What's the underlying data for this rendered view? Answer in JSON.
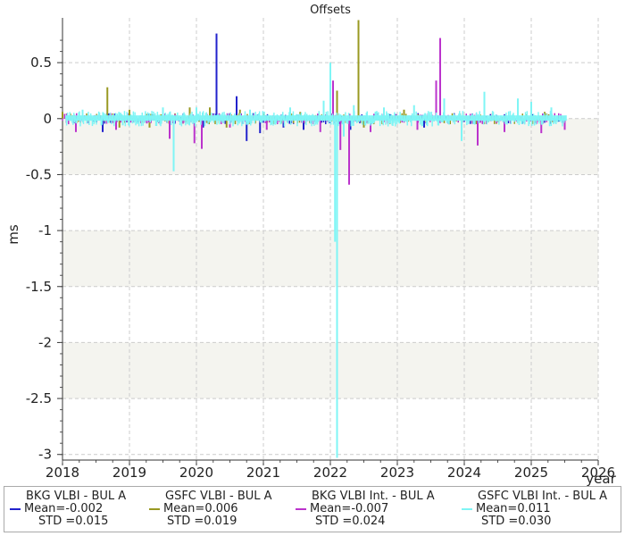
{
  "chart_data": {
    "type": "bar",
    "title": "Offsets",
    "xlabel": "year",
    "ylabel": "ms",
    "xlim": [
      2018,
      2026
    ],
    "ylim": [
      -3.05,
      0.9
    ],
    "x_ticks": [
      "2018",
      "2019",
      "2020",
      "2021",
      "2022",
      "2023",
      "2024",
      "2025",
      "2026"
    ],
    "y_ticks": [
      "0.5",
      "0",
      "-0.5",
      "-1",
      "-1.5",
      "-2",
      "-2.5",
      "-3"
    ],
    "grid": true,
    "legend_position": "bottom",
    "series": [
      {
        "name": "BKG VLBI - BUL A",
        "color": "#2222cc",
        "mean": "Mean=-0.002",
        "std": "STD =0.015",
        "values": [
          [
            2018.6,
            -0.12
          ],
          [
            2019.0,
            0.03
          ],
          [
            2020.1,
            -0.08
          ],
          [
            2020.3,
            0.76
          ],
          [
            2020.6,
            0.2
          ],
          [
            2020.75,
            -0.2
          ],
          [
            2020.95,
            -0.13
          ],
          [
            2021.3,
            -0.08
          ],
          [
            2021.6,
            -0.1
          ],
          [
            2022.3,
            -0.1
          ],
          [
            2023.4,
            -0.08
          ]
        ]
      },
      {
        "name": "GSFC VLBI - BUL A",
        "color": "#999922",
        "mean": "Mean=0.006",
        "std": "STD =0.019",
        "values": [
          [
            2018.0,
            0.06
          ],
          [
            2018.67,
            0.28
          ],
          [
            2018.85,
            -0.08
          ],
          [
            2019.0,
            0.08
          ],
          [
            2019.3,
            -0.08
          ],
          [
            2019.9,
            0.1
          ],
          [
            2020.2,
            0.1
          ],
          [
            2020.45,
            -0.08
          ],
          [
            2020.65,
            0.08
          ],
          [
            2021.55,
            0.06
          ],
          [
            2022.1,
            0.25
          ],
          [
            2022.42,
            0.88
          ],
          [
            2022.5,
            -0.08
          ],
          [
            2023.1,
            0.08
          ],
          [
            2024.3,
            0.1
          ],
          [
            2025.2,
            0.06
          ]
        ]
      },
      {
        "name": "BKG VLBI Int. - BUL A",
        "color": "#bb33cc",
        "mean": "Mean=-0.007",
        "std": "STD =0.024",
        "values": [
          [
            2018.2,
            -0.12
          ],
          [
            2018.8,
            -0.1
          ],
          [
            2019.6,
            -0.18
          ],
          [
            2019.97,
            -0.22
          ],
          [
            2020.08,
            -0.27
          ],
          [
            2020.5,
            -0.08
          ],
          [
            2021.05,
            -0.1
          ],
          [
            2021.85,
            -0.12
          ],
          [
            2022.04,
            0.34
          ],
          [
            2022.15,
            -0.28
          ],
          [
            2022.28,
            -0.59
          ],
          [
            2022.6,
            -0.12
          ],
          [
            2023.3,
            -0.1
          ],
          [
            2023.58,
            0.34
          ],
          [
            2023.64,
            0.72
          ],
          [
            2024.2,
            -0.24
          ],
          [
            2024.6,
            -0.12
          ],
          [
            2025.15,
            -0.13
          ],
          [
            2025.5,
            -0.1
          ]
        ]
      },
      {
        "name": "GSFC VLBI Int. - BUL A",
        "color": "#7ff5f5",
        "mean": "Mean=0.011",
        "std": "STD =0.030",
        "values": [
          [
            2018.3,
            0.08
          ],
          [
            2018.9,
            -0.06
          ],
          [
            2019.5,
            0.1
          ],
          [
            2019.66,
            -0.47
          ],
          [
            2020.0,
            0.1
          ],
          [
            2020.8,
            0.08
          ],
          [
            2021.4,
            0.1
          ],
          [
            2021.9,
            0.16
          ],
          [
            2022.0,
            0.5
          ],
          [
            2022.07,
            -1.1
          ],
          [
            2022.1,
            -3.03
          ],
          [
            2022.2,
            -0.16
          ],
          [
            2022.35,
            0.12
          ],
          [
            2022.8,
            0.1
          ],
          [
            2023.25,
            0.12
          ],
          [
            2023.7,
            0.18
          ],
          [
            2023.96,
            -0.2
          ],
          [
            2024.3,
            0.24
          ],
          [
            2024.8,
            0.18
          ],
          [
            2025.0,
            0.15
          ],
          [
            2025.3,
            0.1
          ]
        ]
      }
    ]
  }
}
